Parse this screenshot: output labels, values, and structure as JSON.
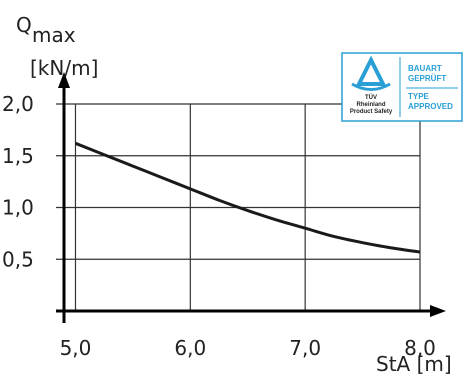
{
  "chart_data": {
    "type": "line",
    "title": "",
    "ylabel": {
      "symbol": "Q",
      "subscript": "max",
      "unit": "[kN/m]"
    },
    "xlabel": "StA [m]",
    "xlim": [
      4.9,
      8.0
    ],
    "ylim": [
      0,
      2.0
    ],
    "x_ticks": [
      {
        "value": 5.0,
        "label": "5,0"
      },
      {
        "value": 6.0,
        "label": "6,0"
      },
      {
        "value": 7.0,
        "label": "7,0"
      },
      {
        "value": 8.0,
        "label": "8,0"
      }
    ],
    "y_ticks": [
      {
        "value": 0.5,
        "label": "0,5"
      },
      {
        "value": 1.0,
        "label": "1,0"
      },
      {
        "value": 1.5,
        "label": "1,5"
      },
      {
        "value": 2.0,
        "label": "2,0"
      }
    ],
    "grid": true,
    "legend": "none",
    "series": [
      {
        "x": [
          5.0,
          5.25,
          5.5,
          5.75,
          6.0,
          6.25,
          6.5,
          6.75,
          7.0,
          7.25,
          7.5,
          7.75,
          8.0
        ],
        "values": [
          1.62,
          1.51,
          1.4,
          1.29,
          1.18,
          1.07,
          0.97,
          0.88,
          0.8,
          0.72,
          0.66,
          0.61,
          0.57
        ]
      }
    ],
    "line_color": "#1a1a1a"
  },
  "badge": {
    "org_line1": "TÜV",
    "org_line2": "Rheinland",
    "org_line3": "Product Safety",
    "de_line1": "BAUART",
    "de_line2": "GEPRÜFT",
    "en_line1": "TYPE",
    "en_line2": "APPROVED",
    "color": "#2a9fd6"
  }
}
